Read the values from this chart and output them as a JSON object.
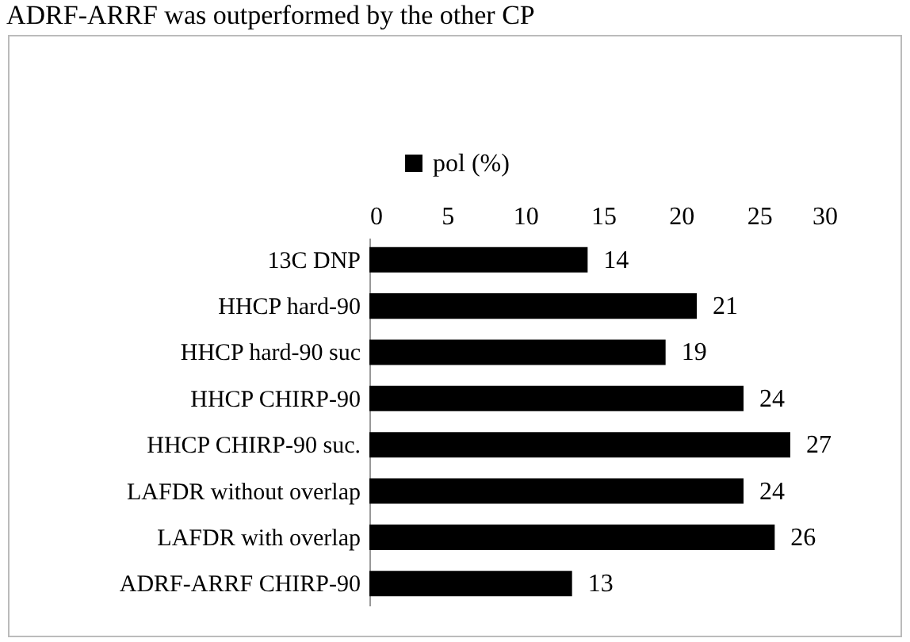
{
  "chart_data": {
    "type": "bar",
    "orientation": "horizontal",
    "annotations": [
      "ADRF-ARRF was outperformed by the other CP"
    ],
    "categories": [
      "13C DNP",
      "HHCP hard-90",
      "HHCP hard-90 suc",
      "HHCP CHIRP-90",
      "HHCP CHIRP-90 suc.",
      "LAFDR without overlap",
      "LAFDR with overlap",
      "ADRF-ARRF CHIRP-90"
    ],
    "series": [
      {
        "name": "pol (%)",
        "color": "#000000",
        "values": [
          14,
          21,
          19,
          24,
          27,
          24,
          26,
          13
        ]
      }
    ],
    "xlim": [
      0,
      30
    ],
    "xticks": [
      0,
      5,
      10,
      15,
      20,
      25,
      30
    ],
    "data_labels": true,
    "legend": "top",
    "grid": false
  }
}
